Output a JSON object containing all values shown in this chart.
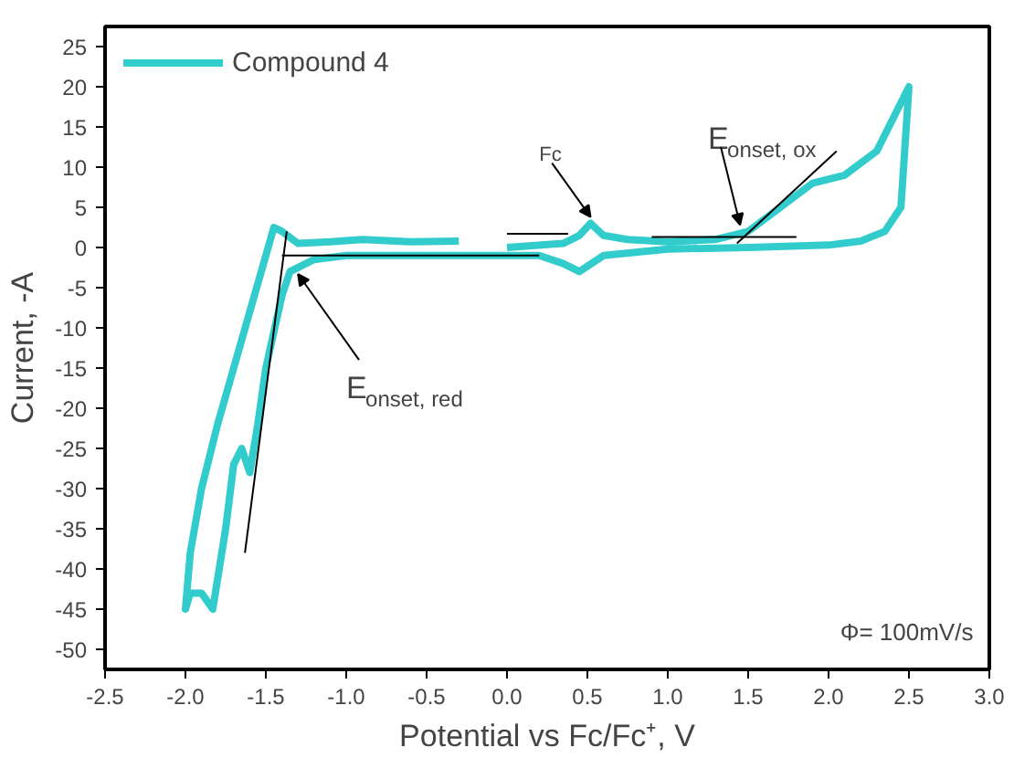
{
  "chart_data": {
    "type": "line",
    "xlabel": "Potential vs Fc/Fc⁺, V",
    "ylabel": "Current, -A",
    "xlim": [
      -2.5,
      3.0
    ],
    "ylim": [
      -52.5,
      27.5
    ],
    "xticks": [
      -2.5,
      {
        "value": -2,
        "label": "-2.0"
      },
      -1.5,
      {
        "value": -1,
        "label": "-1.0"
      },
      -0.5,
      {
        "value": 0,
        "label": "0.0"
      },
      0.5,
      {
        "value": 1,
        "label": "1.0"
      },
      1.5,
      {
        "value": 2,
        "label": "2.0"
      },
      2.5,
      {
        "value": 3,
        "label": "3.0"
      }
    ],
    "yticks": [
      -50,
      -45,
      -40,
      -35,
      -30,
      -25,
      -20,
      -15,
      -10,
      -5,
      0,
      5,
      10,
      15,
      20,
      25
    ],
    "grid": false,
    "legend": "top left",
    "marker": "none",
    "line_style": "solid",
    "series": [
      {
        "name": "Compound 4",
        "color": "#33cccc",
        "x": [
          0,
          0.35,
          0.45,
          0.52,
          0.6,
          0.75,
          1.0,
          1.3,
          1.5,
          1.7,
          1.9,
          2.1,
          2.3,
          2.5,
          2.45,
          2.35,
          2.2,
          2.0,
          1.5,
          1.0,
          0.6,
          0.45,
          0.35,
          0.2,
          0,
          -0.5,
          -1.0,
          -1.2,
          -1.35,
          -1.4,
          -1.5,
          -1.55,
          -1.6,
          -1.65,
          -1.7,
          -1.75,
          -1.83,
          -1.9,
          -1.97,
          -2.0,
          -1.97,
          -1.9,
          -1.8,
          -1.7,
          -1.6,
          -1.5,
          -1.45,
          -1.4,
          -1.3,
          -1.1,
          -0.9,
          -0.6,
          -0.3
        ],
        "values": [
          0,
          0.5,
          1.5,
          3,
          1.5,
          1,
          0.7,
          1,
          2,
          5,
          8,
          9,
          12,
          20,
          5,
          2,
          0.8,
          0.3,
          0,
          -0.2,
          -1,
          -3,
          -2,
          -1,
          -1,
          -1,
          -1,
          -1.5,
          -3,
          -6,
          -15,
          -22,
          -28,
          -25,
          -27,
          -35,
          -45,
          -43,
          -43,
          -45,
          -38,
          -30,
          -22,
          -15,
          -8,
          -1,
          2.5,
          2,
          0.5,
          0.7,
          1,
          0.7,
          0.8
        ]
      },
      {
        "color": "#000000",
        "x": [
          -1.63,
          -1.37
        ],
        "values": [
          -38,
          2
        ]
      },
      {
        "color": "#000000",
        "x": [
          -1.4,
          0.2
        ],
        "values": [
          -1,
          -1
        ]
      },
      {
        "color": "#000000",
        "x": [
          0.9,
          1.8
        ],
        "values": [
          1.3,
          1.3
        ]
      },
      {
        "color": "#000000",
        "x": [
          1.43,
          2.05
        ],
        "values": [
          0.5,
          12
        ]
      },
      {
        "color": "#000000",
        "x": [
          0,
          0.38
        ],
        "values": [
          1.7,
          1.7
        ]
      }
    ],
    "annotations": [
      {
        "text": "Fc",
        "x": 0.52,
        "y": 3
      },
      {
        "text": "E$_{onset, ox}$",
        "x": 1.45,
        "y": 2
      },
      {
        "text": "E$_{onset, red}$",
        "x": -1.3,
        "y": -2.5
      },
      "Φ= 100mV/s"
    ]
  }
}
